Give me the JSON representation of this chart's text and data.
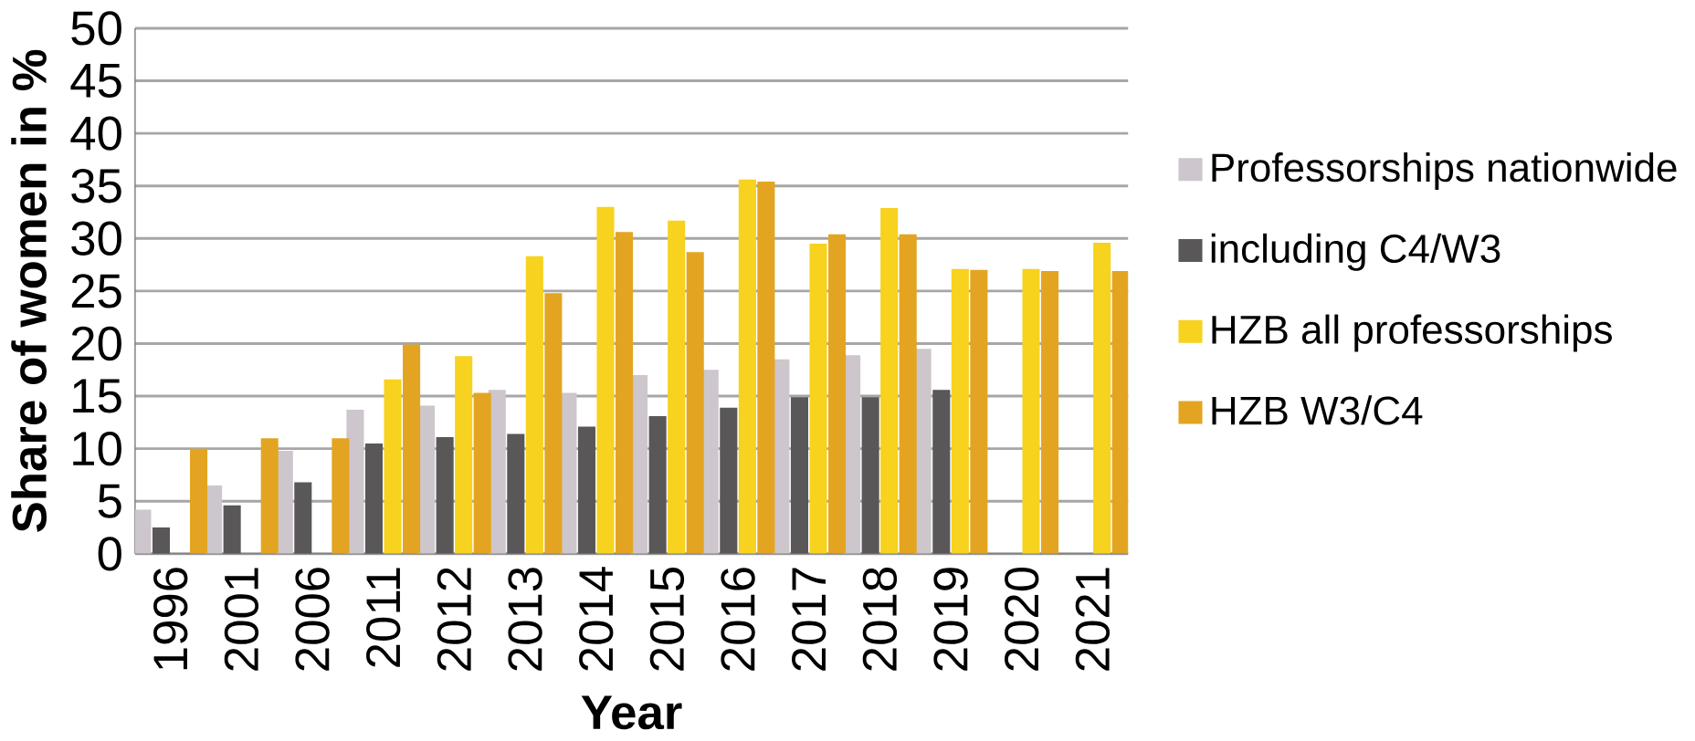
{
  "chart_data": {
    "type": "bar",
    "xlabel": "Year",
    "ylabel": "Share of women in %",
    "categories": [
      "1996",
      "2001",
      "2006",
      "2011",
      "2012",
      "2013",
      "2014",
      "2015",
      "2016",
      "2017",
      "2018",
      "2019",
      "2020",
      "2021"
    ],
    "series": [
      {
        "name": "Professorships nationwide",
        "color": "#cdc6cc",
        "values": [
          4.2,
          6.5,
          9.8,
          13.7,
          14.1,
          15.6,
          15.3,
          17.0,
          17.5,
          18.5,
          18.9,
          19.5,
          null,
          null
        ]
      },
      {
        "name": "including C4/W3",
        "color": "#5a5758",
        "values": [
          2.5,
          4.6,
          6.8,
          10.5,
          11.1,
          11.4,
          12.1,
          13.1,
          13.9,
          14.9,
          14.9,
          15.6,
          null,
          null
        ]
      },
      {
        "name": "HZB all professorships",
        "color": "#f7d21e",
        "values": [
          null,
          null,
          null,
          16.6,
          18.8,
          28.3,
          33.0,
          31.7,
          35.6,
          29.5,
          32.9,
          27.1,
          27.1,
          29.6
        ]
      },
      {
        "name": "HZB W3/C4",
        "color": "#e3a521",
        "values": [
          10,
          11,
          11,
          19.9,
          15.3,
          24.8,
          30.6,
          28.7,
          35.4,
          30.4,
          30.4,
          27.0,
          26.9,
          26.9
        ]
      }
    ],
    "ylim": [
      0,
      50
    ],
    "yticks": [
      0,
      5,
      10,
      15,
      20,
      25,
      30,
      35,
      40,
      45,
      50
    ],
    "grid": "y",
    "legend": "right"
  }
}
